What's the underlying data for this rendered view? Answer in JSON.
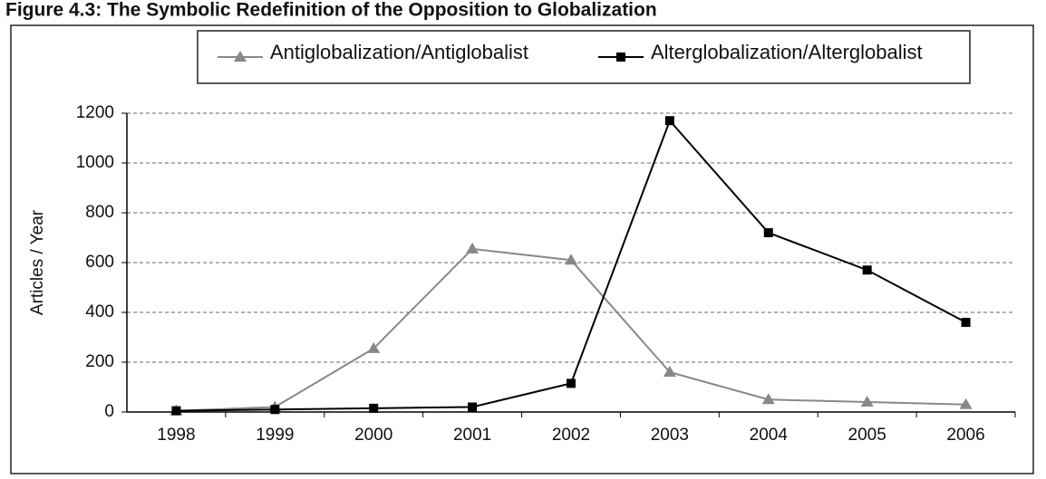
{
  "chart_data": {
    "type": "line",
    "title": "Figure 4.3: The Symbolic Redefinition of the Opposition to Globalization",
    "y_label": "Articles / Year",
    "categories": [
      "1998",
      "1999",
      "2000",
      "2001",
      "2002",
      "2003",
      "2004",
      "2005",
      "2006"
    ],
    "series": [
      {
        "name": "Antiglobalization/Antiglobalist",
        "color": "#888888",
        "marker": "triangle",
        "values": [
          5,
          20,
          255,
          655,
          610,
          160,
          50,
          40,
          30
        ]
      },
      {
        "name": "Alterglobalization/Alterglobalist",
        "color": "#000000",
        "marker": "square",
        "values": [
          5,
          10,
          15,
          20,
          115,
          1170,
          720,
          570,
          360
        ]
      }
    ],
    "ylim": [
      0,
      1200
    ],
    "yticks": [
      0,
      200,
      400,
      600,
      800,
      1000,
      1200
    ],
    "grid": true
  }
}
